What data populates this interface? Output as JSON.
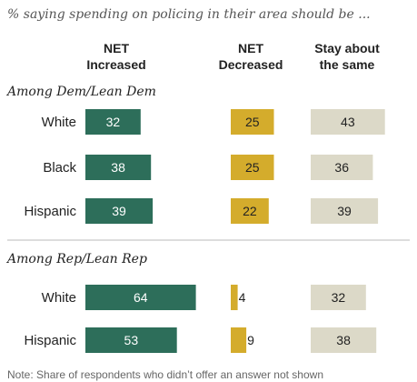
{
  "subtitle": "% saying spending on policing in their area should be ...",
  "note": "Note: Share of respondents who didn’t offer an answer not shown",
  "chart_data": {
    "type": "bar",
    "layout": "grouped horizontal bars in three columns",
    "columns": [
      {
        "key": "increased",
        "line1": "NET",
        "line2": "Increased",
        "color": "#2d6e5a",
        "text_color": "#ffffff"
      },
      {
        "key": "decreased",
        "line1": "NET",
        "line2": "Decreased",
        "color": "#d4ac2c",
        "text_color": "#222222"
      },
      {
        "key": "same",
        "line1": "Stay about",
        "line2": "the same",
        "color": "#dcd9c8",
        "text_color": "#222222"
      }
    ],
    "groups": [
      {
        "label": "Among Dem/Lean Dem",
        "rows": [
          {
            "label": "White",
            "increased": 32,
            "decreased": 25,
            "same": 43
          },
          {
            "label": "Black",
            "increased": 38,
            "decreased": 25,
            "same": 36
          },
          {
            "label": "Hispanic",
            "increased": 39,
            "decreased": 22,
            "same": 39
          }
        ]
      },
      {
        "label": "Among Rep/Lean Rep",
        "rows": [
          {
            "label": "White",
            "increased": 64,
            "decreased": 4,
            "same": 32
          },
          {
            "label": "Hispanic",
            "increased": 53,
            "decreased": 9,
            "same": 38
          }
        ]
      }
    ]
  }
}
